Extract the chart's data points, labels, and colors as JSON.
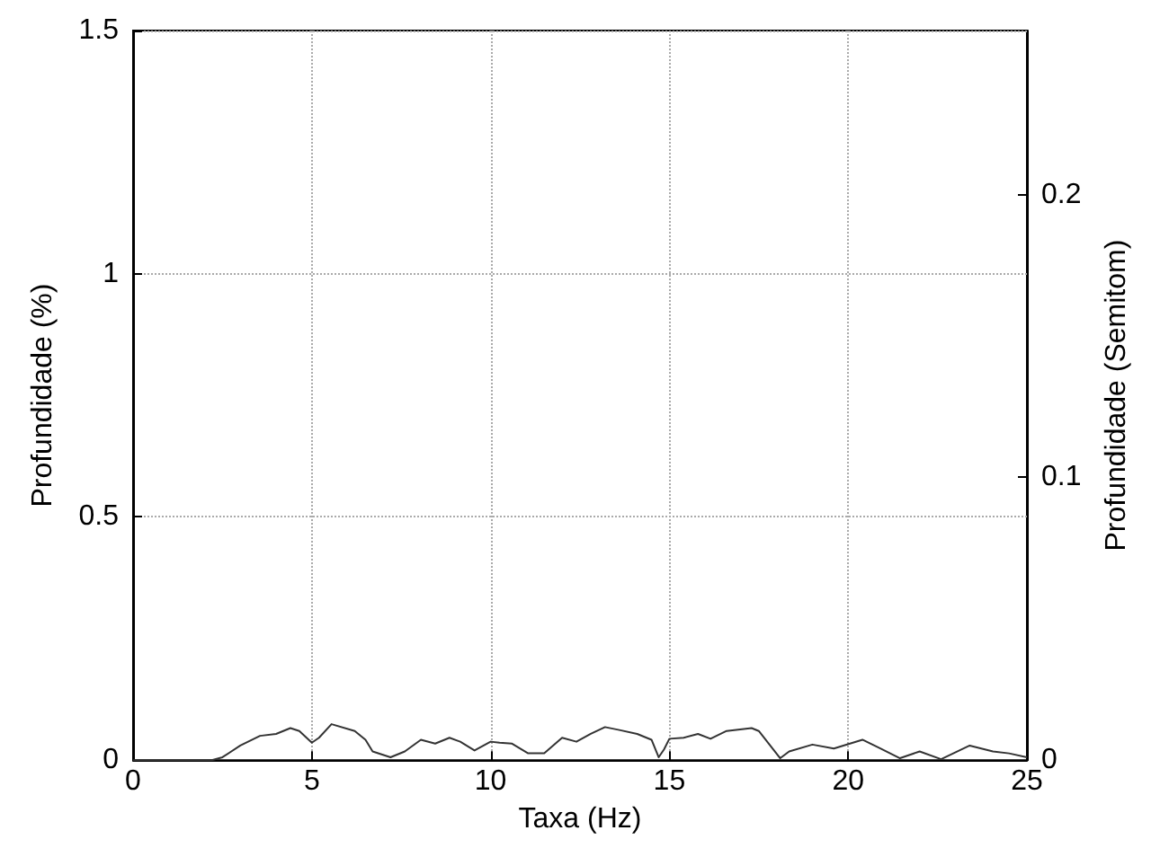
{
  "chart_data": {
    "type": "line",
    "xlabel": "Taxa (Hz)",
    "ylabel": "Profundidade (%)",
    "y2label": "Profundidade (Semitom)",
    "x": [
      0,
      2.2,
      2.5,
      3.0,
      3.55,
      4.0,
      4.4,
      4.65,
      5.0,
      5.2,
      5.55,
      6.2,
      6.5,
      6.7,
      7.2,
      7.6,
      8.05,
      8.45,
      8.85,
      9.15,
      9.55,
      10.0,
      10.25,
      10.6,
      11.05,
      11.5,
      12.0,
      12.4,
      12.8,
      13.2,
      13.6,
      14.1,
      14.5,
      14.7,
      14.85,
      15.0,
      15.4,
      15.8,
      16.15,
      16.6,
      17.3,
      17.5,
      18.1,
      18.35,
      19.0,
      19.6,
      20.4,
      20.9,
      21.45,
      22.0,
      22.6,
      23.4,
      24.05,
      24.5,
      25.0
    ],
    "series": [
      {
        "color": "#333333",
        "values": [
          0,
          0,
          0.006,
          0.03,
          0.05,
          0.054,
          0.066,
          0.06,
          0.036,
          0.046,
          0.074,
          0.06,
          0.042,
          0.018,
          0.006,
          0.018,
          0.042,
          0.034,
          0.046,
          0.038,
          0.02,
          0.038,
          0.036,
          0.034,
          0.014,
          0.014,
          0.046,
          0.038,
          0.054,
          0.068,
          0.062,
          0.054,
          0.042,
          0.006,
          0.022,
          0.044,
          0.046,
          0.054,
          0.044,
          0.06,
          0.066,
          0.06,
          0.004,
          0.018,
          0.032,
          0.024,
          0.042,
          0.024,
          0.004,
          0.018,
          0.002,
          0.03,
          0.018,
          0.014,
          0.006
        ]
      }
    ],
    "xlim": [
      0,
      25
    ],
    "xticks": [
      0,
      5,
      10,
      15,
      20,
      25
    ],
    "ylim": [
      0,
      1.5
    ],
    "yticks": [
      0,
      0.5,
      1,
      1.5
    ],
    "y2lim": [
      0,
      0.258
    ],
    "y2ticks": [
      0,
      0.1,
      0.2
    ],
    "grid": true,
    "marker": "none",
    "line_style": "solid"
  }
}
